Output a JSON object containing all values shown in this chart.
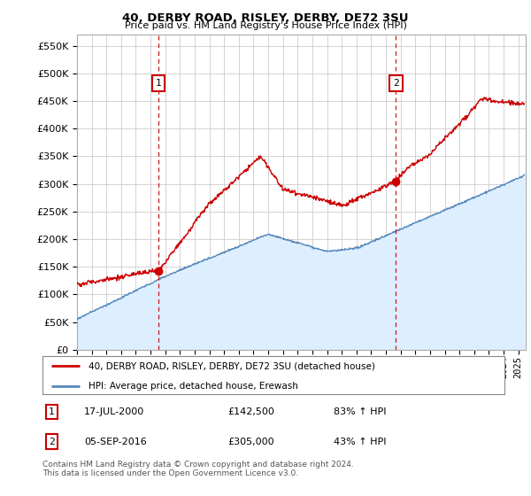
{
  "title": "40, DERBY ROAD, RISLEY, DERBY, DE72 3SU",
  "subtitle": "Price paid vs. HM Land Registry's House Price Index (HPI)",
  "yticks": [
    0,
    50000,
    100000,
    150000,
    200000,
    250000,
    300000,
    350000,
    400000,
    450000,
    500000,
    550000
  ],
  "xlim_start": 1995.0,
  "xlim_end": 2025.5,
  "ylim_min": 0,
  "ylim_max": 570000,
  "sale1_date": 2000.54,
  "sale1_price": 142500,
  "sale1_label": "1",
  "sale2_date": 2016.68,
  "sale2_price": 305000,
  "sale2_label": "2",
  "red_color": "#cc0000",
  "blue_color": "#5588bb",
  "fill_color": "#ddeeff",
  "grid_color": "#cccccc",
  "background_color": "#ffffff",
  "legend_line1": "40, DERBY ROAD, RISLEY, DERBY, DE72 3SU (detached house)",
  "legend_line2": "HPI: Average price, detached house, Erewash",
  "annotation1_date": "17-JUL-2000",
  "annotation1_price": "£142,500",
  "annotation1_hpi": "83% ↑ HPI",
  "annotation2_date": "05-SEP-2016",
  "annotation2_price": "£305,000",
  "annotation2_hpi": "43% ↑ HPI",
  "footnote": "Contains HM Land Registry data © Crown copyright and database right 2024.\nThis data is licensed under the Open Government Licence v3.0."
}
